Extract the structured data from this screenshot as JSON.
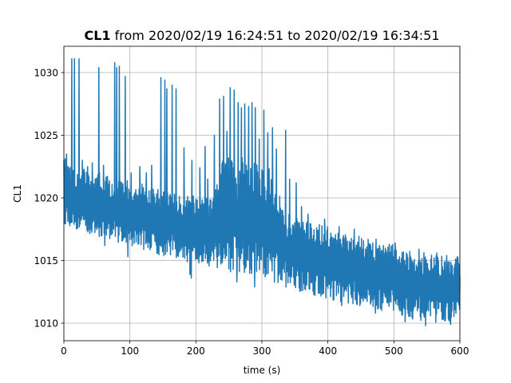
{
  "chart_data": {
    "type": "line",
    "title_bold": "CL1",
    "title_rest": " from 2020/02/19 16:24:51 to 2020/02/19 16:34:51",
    "xlabel": "time (s)",
    "ylabel": "CL1",
    "xlim": [
      0,
      600
    ],
    "ylim": [
      1008.6,
      1032.1
    ],
    "x_ticks": [
      0,
      100,
      200,
      300,
      400,
      500,
      600
    ],
    "y_ticks": [
      1010,
      1015,
      1020,
      1025,
      1030
    ],
    "grid": true,
    "legend": "none",
    "series": [
      {
        "color": "#1f77b4",
        "envelope_x": [
          0,
          10,
          20,
          30,
          40,
          50,
          60,
          70,
          80,
          90,
          100,
          110,
          120,
          130,
          140,
          150,
          160,
          170,
          180,
          190,
          200,
          210,
          220,
          230,
          240,
          250,
          260,
          270,
          280,
          290,
          300,
          310,
          320,
          330,
          340,
          350,
          360,
          370,
          380,
          390,
          400,
          410,
          420,
          430,
          440,
          450,
          460,
          470,
          480,
          490,
          500,
          510,
          520,
          530,
          540,
          550,
          560,
          570,
          580,
          590,
          600
        ],
        "upper": [
          1023.2,
          1022.9,
          1022.5,
          1022.4,
          1022.0,
          1022.1,
          1022.0,
          1021.6,
          1021.6,
          1021.3,
          1021.5,
          1021.2,
          1021.2,
          1020.8,
          1020.7,
          1020.6,
          1020.5,
          1020.3,
          1020.2,
          1020.5,
          1020.1,
          1019.9,
          1020.0,
          1022.5,
          1023.0,
          1023.2,
          1023.0,
          1023.4,
          1023.3,
          1023.0,
          1022.8,
          1022.4,
          1022.0,
          1019.6,
          1018.7,
          1018.5,
          1018.5,
          1018.3,
          1018.1,
          1017.9,
          1017.7,
          1017.6,
          1017.5,
          1017.2,
          1017.1,
          1016.9,
          1016.7,
          1016.6,
          1016.5,
          1016.4,
          1016.3,
          1016.1,
          1016.0,
          1015.9,
          1015.8,
          1015.6,
          1015.4,
          1015.4,
          1015.3,
          1015.3,
          1015.3
        ],
        "lower": [
          1017.9,
          1017.7,
          1017.4,
          1017.3,
          1017.0,
          1016.8,
          1016.9,
          1016.7,
          1016.5,
          1016.3,
          1016.2,
          1016.0,
          1015.9,
          1015.7,
          1015.5,
          1015.3,
          1015.4,
          1015.2,
          1015.0,
          1014.7,
          1014.6,
          1014.4,
          1014.5,
          1014.3,
          1014.0,
          1014.0,
          1013.8,
          1013.4,
          1013.2,
          1013.4,
          1013.2,
          1013.1,
          1013.0,
          1012.8,
          1012.9,
          1012.6,
          1012.5,
          1012.3,
          1012.2,
          1012.0,
          1011.9,
          1011.8,
          1011.7,
          1011.6,
          1011.4,
          1011.3,
          1011.2,
          1011.0,
          1011.0,
          1010.9,
          1010.8,
          1010.6,
          1010.5,
          1010.3,
          1010.2,
          1010.0,
          1010.0,
          1010.0,
          1010.1,
          1010.2,
          1010.3
        ]
      }
    ],
    "spikes": [
      {
        "x": 4,
        "y": 1023.5
      },
      {
        "x": 12,
        "y": 1031.1
      },
      {
        "x": 16,
        "y": 1031.1
      },
      {
        "x": 23,
        "y": 1031.1
      },
      {
        "x": 28,
        "y": 1023.0
      },
      {
        "x": 36,
        "y": 1022.5
      },
      {
        "x": 43,
        "y": 1022.8
      },
      {
        "x": 53,
        "y": 1030.4
      },
      {
        "x": 60,
        "y": 1022.6
      },
      {
        "x": 77,
        "y": 1030.8
      },
      {
        "x": 80,
        "y": 1030.4
      },
      {
        "x": 84,
        "y": 1030.5
      },
      {
        "x": 93,
        "y": 1029.7
      },
      {
        "x": 102,
        "y": 1022.0
      },
      {
        "x": 115,
        "y": 1022.5
      },
      {
        "x": 125,
        "y": 1022.0
      },
      {
        "x": 133,
        "y": 1022.6
      },
      {
        "x": 147,
        "y": 1029.6
      },
      {
        "x": 153,
        "y": 1029.4
      },
      {
        "x": 156,
        "y": 1028.7
      },
      {
        "x": 164,
        "y": 1029.0
      },
      {
        "x": 170,
        "y": 1028.7
      },
      {
        "x": 182,
        "y": 1024.0
      },
      {
        "x": 194,
        "y": 1023.0
      },
      {
        "x": 206,
        "y": 1022.4
      },
      {
        "x": 214,
        "y": 1024.1
      },
      {
        "x": 218,
        "y": 1021.5
      },
      {
        "x": 228,
        "y": 1025.0
      },
      {
        "x": 236,
        "y": 1027.9
      },
      {
        "x": 242,
        "y": 1028.1
      },
      {
        "x": 247,
        "y": 1025.3
      },
      {
        "x": 252,
        "y": 1028.8
      },
      {
        "x": 258,
        "y": 1028.6
      },
      {
        "x": 264,
        "y": 1027.6
      },
      {
        "x": 269,
        "y": 1027.2
      },
      {
        "x": 274,
        "y": 1027.5
      },
      {
        "x": 280,
        "y": 1027.3
      },
      {
        "x": 285,
        "y": 1027.6
      },
      {
        "x": 290,
        "y": 1027.2
      },
      {
        "x": 296,
        "y": 1024.7
      },
      {
        "x": 303,
        "y": 1027.0
      },
      {
        "x": 309,
        "y": 1025.2
      },
      {
        "x": 316,
        "y": 1025.6
      },
      {
        "x": 322,
        "y": 1023.9
      },
      {
        "x": 331,
        "y": 1019.0
      },
      {
        "x": 336,
        "y": 1025.4
      },
      {
        "x": 342,
        "y": 1021.5
      },
      {
        "x": 352,
        "y": 1021.2
      },
      {
        "x": 360,
        "y": 1019.3
      },
      {
        "x": 370,
        "y": 1018.7
      },
      {
        "x": 395,
        "y": 1018.3
      },
      {
        "x": 417,
        "y": 1017.7
      },
      {
        "x": 440,
        "y": 1017.5
      },
      {
        "x": 473,
        "y": 1016.7
      },
      {
        "x": 502,
        "y": 1016.4
      },
      {
        "x": 538,
        "y": 1015.9
      },
      {
        "x": 565,
        "y": 1015.6
      },
      {
        "x": 580,
        "y": 1015.4
      },
      {
        "x": 596,
        "y": 1015.3
      }
    ],
    "dips": [
      {
        "x": 62,
        "y": 1016.2
      },
      {
        "x": 97,
        "y": 1015.3
      },
      {
        "x": 191,
        "y": 1013.9
      },
      {
        "x": 193,
        "y": 1013.6
      },
      {
        "x": 262,
        "y": 1013.3
      },
      {
        "x": 289,
        "y": 1012.9
      },
      {
        "x": 336,
        "y": 1012.5
      },
      {
        "x": 360,
        "y": 1012.2
      },
      {
        "x": 421,
        "y": 1011.4
      },
      {
        "x": 472,
        "y": 1010.8
      },
      {
        "x": 517,
        "y": 1010.1
      },
      {
        "x": 548,
        "y": 1009.8
      },
      {
        "x": 586,
        "y": 1009.9
      }
    ]
  }
}
